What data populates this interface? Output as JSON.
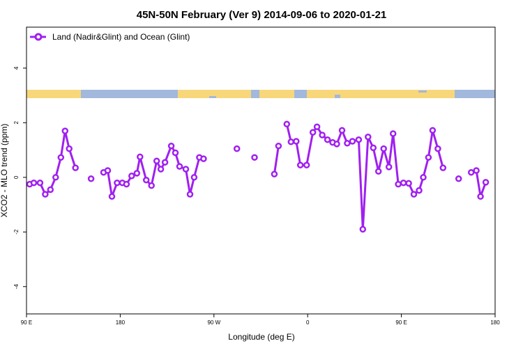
{
  "chart_data": {
    "type": "line",
    "title": "45N-50N February (Ver 9)   2014-09-06 to 2020-01-21",
    "xlabel": "Longitude (deg E)",
    "ylabel": "XCO2 - MLO trend (ppm)",
    "xlim": [
      90,
      540
    ],
    "ylim": [
      -5,
      5.5
    ],
    "x_ticks": [
      {
        "value": 90,
        "label": "90 E"
      },
      {
        "value": 180,
        "label": "180"
      },
      {
        "value": 270,
        "label": "90 W"
      },
      {
        "value": 360,
        "label": "0"
      },
      {
        "value": 450,
        "label": "90 E"
      },
      {
        "value": 540,
        "label": "180"
      }
    ],
    "y_ticks": [
      {
        "value": -4,
        "label": "-4"
      },
      {
        "value": -2,
        "label": "-2"
      },
      {
        "value": 0,
        "label": "0"
      },
      {
        "value": 2,
        "label": "2"
      },
      {
        "value": 4,
        "label": "4"
      }
    ],
    "legend": {
      "position": "top-left"
    },
    "map_strip": {
      "ocean_color": "#a2b8dc",
      "land_color": "#f8d77a"
    },
    "series": [
      {
        "name": "Land (Nadir&Glint) and Ocean (Glint)",
        "color": "#a020f0",
        "segments": [
          [
            [
              93,
              -0.25
            ],
            [
              97,
              -0.2
            ],
            [
              103,
              -0.2
            ],
            [
              108,
              -0.62
            ],
            [
              113,
              -0.45
            ],
            [
              118,
              0.0
            ],
            [
              123,
              0.73
            ],
            [
              127,
              1.7
            ],
            [
              131,
              1.05
            ],
            [
              137,
              0.35
            ]
          ],
          [
            [
              152,
              -0.05
            ]
          ],
          [
            [
              164,
              0.18
            ],
            [
              168,
              0.25
            ],
            [
              172,
              -0.7
            ],
            [
              177,
              -0.2
            ],
            [
              182,
              -0.2
            ],
            [
              186,
              -0.25
            ],
            [
              191,
              0.05
            ],
            [
              196,
              0.15
            ],
            [
              199,
              0.75
            ],
            [
              205,
              -0.1
            ],
            [
              210,
              -0.3
            ],
            [
              215,
              0.6
            ],
            [
              219,
              0.3
            ],
            [
              223,
              0.55
            ],
            [
              229,
              1.15
            ],
            [
              233,
              0.9
            ],
            [
              237,
              0.4
            ],
            [
              243,
              0.3
            ],
            [
              247,
              -0.62
            ],
            [
              251,
              0.0
            ],
            [
              256,
              0.73
            ],
            [
              260,
              0.68
            ]
          ],
          [
            [
              292,
              1.05
            ]
          ],
          [
            [
              309,
              0.73
            ]
          ],
          [
            [
              328,
              0.12
            ],
            [
              332,
              1.15
            ]
          ],
          [
            [
              340,
              1.95
            ],
            [
              344,
              1.3
            ],
            [
              349,
              1.32
            ],
            [
              353,
              0.45
            ],
            [
              359,
              0.45
            ],
            [
              365,
              1.65
            ],
            [
              369,
              1.85
            ],
            [
              374,
              1.55
            ],
            [
              379,
              1.38
            ],
            [
              384,
              1.28
            ],
            [
              388,
              1.22
            ],
            [
              393,
              1.72
            ],
            [
              398,
              1.25
            ],
            [
              403,
              1.32
            ],
            [
              409,
              1.38
            ],
            [
              413,
              -1.9
            ],
            [
              418,
              1.48
            ],
            [
              423,
              1.08
            ],
            [
              428,
              0.22
            ],
            [
              433,
              1.05
            ],
            [
              438,
              0.38
            ],
            [
              442,
              1.6
            ],
            [
              447,
              -0.25
            ],
            [
              452,
              -0.2
            ],
            [
              457,
              -0.22
            ],
            [
              462,
              -0.62
            ],
            [
              467,
              -0.48
            ],
            [
              471,
              0.0
            ],
            [
              476,
              0.73
            ],
            [
              480,
              1.72
            ],
            [
              485,
              1.05
            ],
            [
              490,
              0.35
            ]
          ],
          [
            [
              505,
              -0.05
            ]
          ],
          [
            [
              517,
              0.18
            ],
            [
              522,
              0.25
            ],
            [
              526,
              -0.7
            ],
            [
              531,
              -0.18
            ]
          ]
        ]
      }
    ]
  }
}
